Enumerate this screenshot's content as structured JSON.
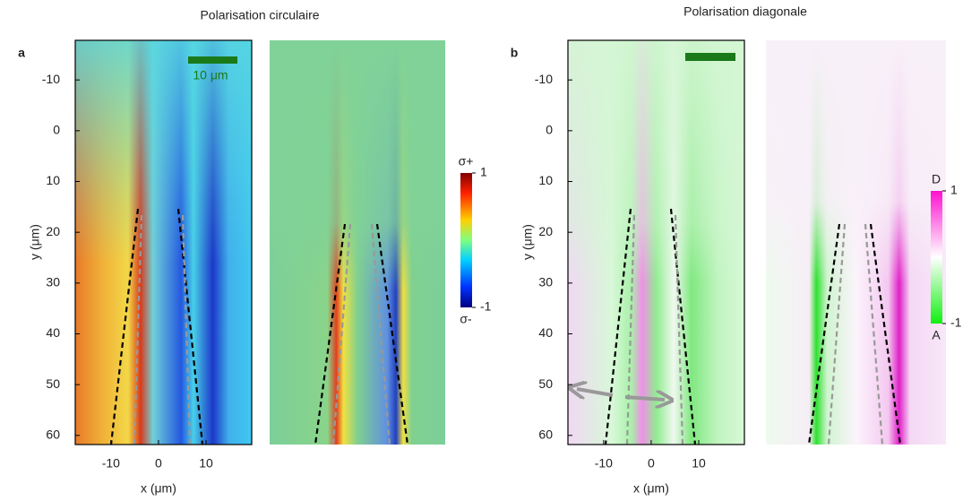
{
  "chart_data": [
    {
      "type": "heatmap",
      "title": "Polarisation circulaire",
      "panel": "a",
      "xlabel": "x (μm)",
      "ylabel": "y (μm)",
      "xlim": [
        -17.5,
        19.6
      ],
      "ylim": [
        61.8,
        -17.8
      ],
      "xticks": [
        -10,
        0,
        10
      ],
      "yticks": [
        -10,
        0,
        10,
        20,
        30,
        40,
        50,
        60
      ],
      "scale_bar": "10 μm",
      "colorbar": {
        "top": "σ+",
        "bottom": "σ-",
        "clim": [
          -1,
          1
        ],
        "ticks": [
          1,
          -1
        ]
      }
    },
    {
      "type": "heatmap",
      "title": "Polarisation diagonale",
      "panel": "b",
      "xlabel": "x (μm)",
      "ylabel": "y (μm)",
      "xlim": [
        -17.5,
        19.6
      ],
      "ylim": [
        61.8,
        -17.8
      ],
      "xticks": [
        -10,
        0,
        10
      ],
      "yticks": [
        -10,
        0,
        10,
        20,
        30,
        40,
        50,
        60
      ],
      "colorbar": {
        "top": "D",
        "bottom": "A",
        "clim": [
          -1,
          1
        ],
        "ticks": [
          1,
          -1
        ]
      }
    }
  ]
}
